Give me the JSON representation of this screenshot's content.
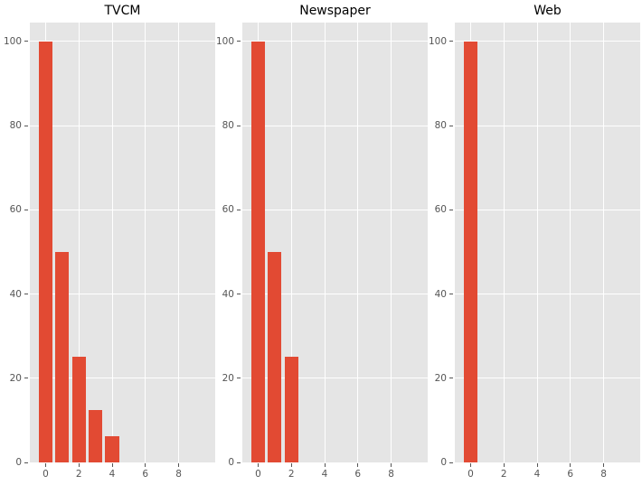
{
  "figure": {
    "style": {
      "figure_bg": "#ffffff",
      "plot_bg": "#e5e5e5",
      "grid_color": "#ffffff",
      "bar_color": "#e24a33",
      "tick_color": "#555555",
      "title_color": "#000000"
    }
  },
  "chart_data": [
    {
      "type": "bar",
      "title": "TVCM",
      "x": [
        0,
        1,
        2,
        3,
        4
      ],
      "values": [
        100,
        50,
        25,
        12.5,
        6.25
      ],
      "bar_width": 0.82,
      "xlim": [
        -0.95,
        10.2
      ],
      "ylim": [
        0,
        104.5
      ],
      "xticks": [
        0,
        2,
        4,
        6,
        8
      ],
      "yticks": [
        0,
        20,
        40,
        60,
        80,
        100
      ],
      "grid": true,
      "legend": false
    },
    {
      "type": "bar",
      "title": "Newspaper",
      "x": [
        0,
        1,
        2
      ],
      "values": [
        100,
        50,
        25
      ],
      "bar_width": 0.82,
      "xlim": [
        -0.95,
        10.2
      ],
      "ylim": [
        0,
        104.5
      ],
      "xticks": [
        0,
        2,
        4,
        6,
        8
      ],
      "yticks": [
        0,
        20,
        40,
        60,
        80,
        100
      ],
      "grid": true,
      "legend": false
    },
    {
      "type": "bar",
      "title": "Web",
      "x": [
        0
      ],
      "values": [
        100
      ],
      "bar_width": 0.82,
      "xlim": [
        -0.95,
        10.2
      ],
      "ylim": [
        0,
        104.5
      ],
      "xticks": [
        0,
        2,
        4,
        6,
        8
      ],
      "yticks": [
        0,
        20,
        40,
        60,
        80,
        100
      ],
      "grid": true,
      "legend": false
    }
  ]
}
